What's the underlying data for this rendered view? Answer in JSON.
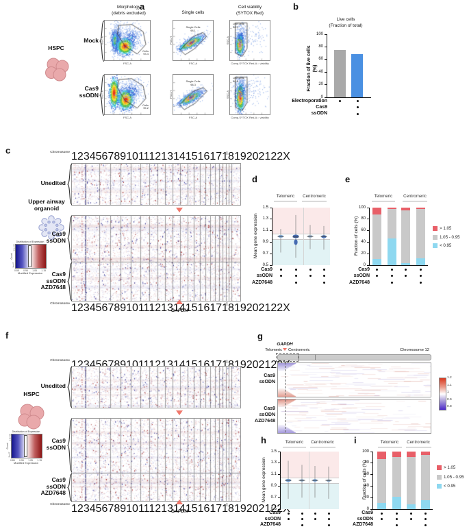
{
  "colors": {
    "accent_salmon": "#f0786c",
    "bar_gray": "#a9a9a9",
    "bar_blue": "#4a90e2",
    "stack_red": "#e85f68",
    "stack_gray": "#c9c9c9",
    "stack_blue": "#8ed8f0",
    "violin_pink_bg": "#fbe9e9",
    "violin_cyan_bg": "#e2f3f5",
    "hspc_pink": "#e9a9ab",
    "organoid_lavender": "#e4e7f5"
  },
  "chromosomes": [
    {
      "n": "1",
      "mb": 249
    },
    {
      "n": "2",
      "mb": 243
    },
    {
      "n": "3",
      "mb": 198
    },
    {
      "n": "4",
      "mb": 190
    },
    {
      "n": "5",
      "mb": 182
    },
    {
      "n": "6",
      "mb": 171
    },
    {
      "n": "7",
      "mb": 159
    },
    {
      "n": "8",
      "mb": 145
    },
    {
      "n": "9",
      "mb": 138
    },
    {
      "n": "10",
      "mb": 134
    },
    {
      "n": "11",
      "mb": 135
    },
    {
      "n": "12",
      "mb": 133
    },
    {
      "n": "13",
      "mb": 114
    },
    {
      "n": "14",
      "mb": 107
    },
    {
      "n": "15",
      "mb": 102
    },
    {
      "n": "16",
      "mb": 90
    },
    {
      "n": "17",
      "mb": 83
    },
    {
      "n": "18",
      "mb": 80
    },
    {
      "n": "19",
      "mb": 59
    },
    {
      "n": "20",
      "mb": 64
    },
    {
      "n": "21",
      "mb": 47,
      "offset": true
    },
    {
      "n": "22",
      "mb": 51
    },
    {
      "n": "X",
      "mb": 155
    }
  ],
  "panels": {
    "a": {
      "label": "a",
      "cell_type": "HSPC",
      "col1_header_line1": "Morphology",
      "col1_header_line2": "(debris excluded)",
      "col2_header": "Single cells",
      "col3_header_line1": "Cell viability",
      "col3_header_line2": "(SYTOX Red)",
      "row1_label": "Mock",
      "row2_label_line1": "Cas9",
      "row2_label_line2": "ssODN",
      "plots": [
        {
          "ylabel": "SSC-A",
          "xlabel": "FSC-A",
          "gate_name": "Cells",
          "gate_pct": "93.4"
        },
        {
          "ylabel": "FSC-H",
          "xlabel": "FSC-A",
          "gate_name": "Single Cells",
          "gate_pct": "98.1"
        },
        {
          "ylabel": "SSC-A",
          "xlabel": "Comp-SYTOX Red-A :: viability",
          "gate_name": "Live cells",
          "gate_pct": "98.3"
        },
        {
          "ylabel": "SSC-A",
          "xlabel": "FSC-A",
          "gate_name": "Cells",
          "gate_pct": "95.2"
        },
        {
          "ylabel": "FSC-H",
          "xlabel": "FSC-A",
          "gate_name": "Single Cells",
          "gate_pct": "98.3"
        },
        {
          "ylabel": "SSC-A",
          "xlabel": "Comp-SYTOX Red-A :: viability",
          "gate_name": "Live cells",
          "gate_pct": "96.8"
        }
      ]
    },
    "b": {
      "label": "b",
      "title_line1": "Live cells",
      "title_line2": "(Fraction of total)",
      "ylabel": "Fraction of live cells (%)",
      "ylim": [
        0,
        100
      ],
      "yticks": [
        0,
        20,
        40,
        60,
        80,
        100
      ],
      "bars": [
        {
          "value": 75,
          "color": "#a9a9a9"
        },
        {
          "value": 68,
          "color": "#4a90e2"
        }
      ],
      "condition_rows": [
        {
          "label": "Electroporation",
          "dots": [
            1,
            1
          ]
        },
        {
          "label": "Cas9",
          "dots": [
            0,
            1
          ]
        },
        {
          "label": "ssODN",
          "dots": [
            0,
            1
          ]
        }
      ]
    },
    "c": {
      "label": "c",
      "sample_line1": "Upper airway",
      "sample_line2": "organoid",
      "rows": [
        {
          "lines": [
            "Unedited"
          ]
        },
        {
          "lines": [
            "Cas9",
            "ssODN"
          ]
        },
        {
          "lines": [
            "Cas9",
            "ssODN",
            "AZD7648"
          ]
        }
      ],
      "axis_title": "Chromosome",
      "gene": "GAPDH",
      "colorbar": {
        "title": "Distribution of Expression",
        "ylabel": "Count",
        "yticks": [
          "5e+07",
          "1.5e+08"
        ],
        "xlabel": "Modified Expression",
        "xticks": [
          "0.85",
          "0.95",
          "1.05",
          "1.15"
        ]
      }
    },
    "d": {
      "label": "d",
      "group_headers": [
        "Telomeric",
        "Centromeric"
      ],
      "ylabel": "Mean gene expression",
      "ylim": [
        0.5,
        1.5
      ],
      "yticks": [
        "0.5",
        "0.7",
        "0.9",
        "1.1",
        "1.3",
        "1.5"
      ],
      "threshold_upper": 1.05,
      "threshold_lower": 0.95,
      "violins": [
        {
          "min": 0.72,
          "max": 1.13,
          "median": 1.0,
          "lobes": [
            {
              "y": 1.0,
              "hw": 5,
              "hh": 2,
              "color": "#7ea8d8"
            }
          ]
        },
        {
          "min": 0.63,
          "max": 1.37,
          "median": 0.99,
          "lobes": [
            {
              "y": 1.0,
              "hw": 6,
              "hh": 2.5,
              "color": "#3b62ae"
            },
            {
              "y": 0.9,
              "hw": 3.5,
              "hh": 4,
              "color": "#3b62ae"
            }
          ]
        },
        {
          "min": 0.78,
          "max": 1.2,
          "median": 1.0,
          "lobes": [
            {
              "y": 1.0,
              "hw": 4.5,
              "hh": 2,
              "color": "#9fb4cc"
            }
          ]
        },
        {
          "min": 0.77,
          "max": 1.18,
          "median": 1.0,
          "lobes": [
            {
              "y": 0.995,
              "hw": 5,
              "hh": 2.2,
              "color": "#4a72b8"
            }
          ]
        }
      ],
      "condition_rows": [
        {
          "label": "Cas9",
          "dots": [
            1,
            1,
            1,
            1
          ]
        },
        {
          "label": "ssODN",
          "dots": [
            1,
            1,
            1,
            1
          ]
        },
        {
          "label": "AZD7648",
          "dots": [
            0,
            1,
            0,
            1
          ]
        }
      ]
    },
    "e": {
      "label": "e",
      "group_headers": [
        "Telomeric",
        "Centromeric"
      ],
      "ylabel": "Fraction of cells (%)",
      "ylim": [
        0,
        100
      ],
      "yticks": [
        0,
        20,
        40,
        60,
        80,
        100
      ],
      "stacks": [
        {
          "lt": 11,
          "mid": 77,
          "gt": 12
        },
        {
          "lt": 47,
          "mid": 51,
          "gt": 2
        },
        {
          "lt": 3,
          "mid": 92,
          "gt": 5
        },
        {
          "lt": 12,
          "mid": 86,
          "gt": 2
        }
      ],
      "legend": [
        {
          "label": "> 1.05",
          "color": "#e85f68"
        },
        {
          "label": "1.05 - 0.95",
          "color": "#c9c9c9"
        },
        {
          "label": "< 0.95",
          "color": "#8ed8f0"
        }
      ],
      "condition_rows": [
        {
          "label": "Cas9",
          "dots": [
            1,
            1,
            1,
            1
          ]
        },
        {
          "label": "ssODN",
          "dots": [
            1,
            1,
            1,
            1
          ]
        },
        {
          "label": "AZD7648",
          "dots": [
            0,
            1,
            0,
            1
          ]
        }
      ]
    },
    "f": {
      "label": "f",
      "sample": "HSPC",
      "rows": [
        {
          "lines": [
            "Unedited"
          ]
        },
        {
          "lines": [
            "Cas9",
            "ssODN"
          ]
        },
        {
          "lines": [
            "Cas9",
            "ssODN",
            "AZD7648"
          ]
        }
      ],
      "axis_title": "Chromosome",
      "gene": "GAPDH",
      "colorbar": {
        "title": "Distribution of Expression",
        "ylabel": "Count",
        "yticks": [
          "5e+07",
          "1.5e+08"
        ],
        "xlabel": "Modified Expression",
        "xticks": [
          "0.85",
          "0.95",
          "1.05",
          "1.15"
        ]
      }
    },
    "g": {
      "label": "g",
      "gene": "GAPDH",
      "telomeric": "Telomeric",
      "centromeric": "Centromeric",
      "chromosome": "Chromosome 12",
      "rows": [
        {
          "lines": [
            "Cas9",
            "ssODN"
          ]
        },
        {
          "lines": [
            "Cas9",
            "ssODN",
            "AZD7648"
          ]
        }
      ],
      "scale_ticks": [
        "1.2",
        "1.1",
        "1",
        "0.9",
        "0.8"
      ]
    },
    "h": {
      "label": "h",
      "group_headers": [
        "Telomeric",
        "Centromeric"
      ],
      "ylabel": "Mean gene expression",
      "ylim": [
        0.5,
        1.5
      ],
      "yticks": [
        "0.5",
        "0.7",
        "0.9",
        "1.1",
        "1.3",
        "1.5"
      ],
      "threshold_upper": 1.05,
      "threshold_lower": 0.95,
      "violins": [
        {
          "min": 0.68,
          "max": 1.34,
          "median": 1.0,
          "lobes": [
            {
              "y": 1.0,
              "hw": 5.5,
              "hh": 2,
              "color": "#6fa0d8"
            }
          ]
        },
        {
          "min": 0.7,
          "max": 1.27,
          "median": 1.0,
          "lobes": [
            {
              "y": 1.0,
              "hw": 4,
              "hh": 1.8,
              "color": "#8aa8c8"
            }
          ]
        },
        {
          "min": 0.7,
          "max": 1.25,
          "median": 1.0,
          "lobes": [
            {
              "y": 1.0,
              "hw": 4.5,
              "hh": 1.8,
              "color": "#6fa0d8"
            }
          ]
        },
        {
          "min": 0.68,
          "max": 1.24,
          "median": 1.0,
          "lobes": [
            {
              "y": 0.995,
              "hw": 4,
              "hh": 1.8,
              "color": "#8aa8c8"
            }
          ]
        }
      ],
      "condition_rows": [
        {
          "label": "Cas9",
          "dots": [
            1,
            1,
            1,
            1
          ]
        },
        {
          "label": "ssODN",
          "dots": [
            1,
            1,
            1,
            1
          ]
        },
        {
          "label": "AZD7648",
          "dots": [
            0,
            1,
            0,
            1
          ]
        }
      ]
    },
    "i": {
      "label": "i",
      "group_headers": [
        "Telomeric",
        "Centromeric"
      ],
      "ylabel": "Fraction of cells (%)",
      "ylim": [
        0,
        100
      ],
      "yticks": [
        0,
        20,
        40,
        60,
        80,
        100
      ],
      "stacks": [
        {
          "lt": 11,
          "mid": 76,
          "gt": 13
        },
        {
          "lt": 22,
          "mid": 69,
          "gt": 9
        },
        {
          "lt": 8,
          "mid": 82,
          "gt": 10
        },
        {
          "lt": 16,
          "mid": 78,
          "gt": 6
        }
      ],
      "legend": [
        {
          "label": "> 1.05",
          "color": "#e85f68"
        },
        {
          "label": "1.05 - 0.95",
          "color": "#c9c9c9"
        },
        {
          "label": "< 0.95",
          "color": "#8ed8f0"
        }
      ],
      "condition_rows": [
        {
          "label": "Cas9",
          "dots": [
            1,
            1,
            1,
            1
          ]
        },
        {
          "label": "ssODN",
          "dots": [
            1,
            1,
            1,
            1
          ]
        },
        {
          "label": "AZD7648",
          "dots": [
            0,
            1,
            0,
            1
          ]
        }
      ]
    }
  }
}
